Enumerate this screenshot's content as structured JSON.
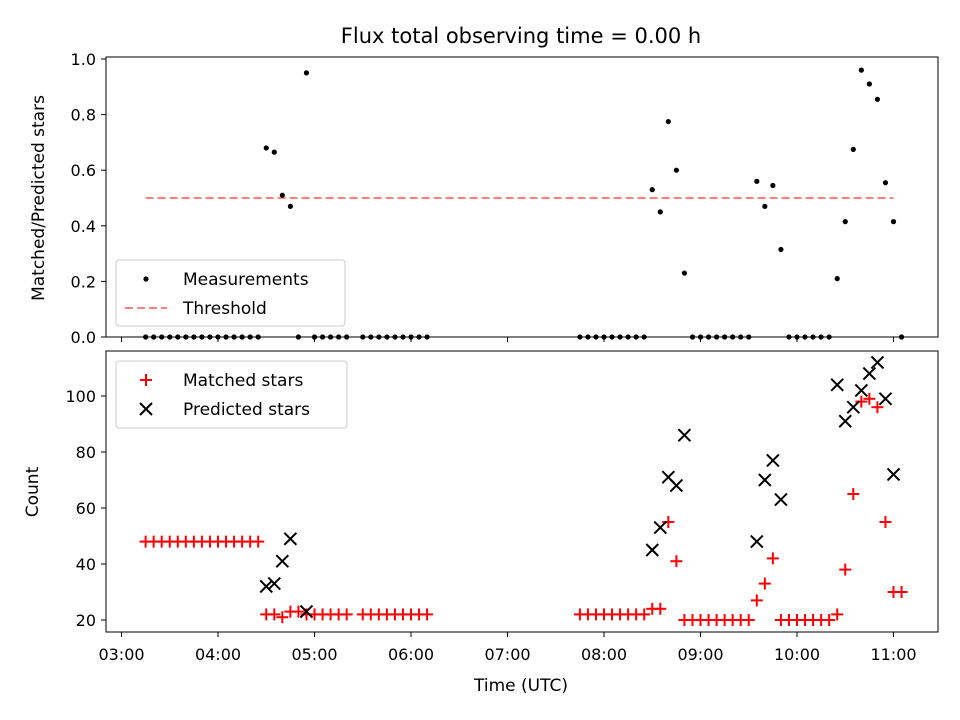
{
  "chart_data": [
    {
      "type": "scatter",
      "title": "Flux total observing time = 0.00 h",
      "xlabel": "",
      "ylabel": "Matched/Predicted stars",
      "xlim": [
        "03:00",
        "11:30"
      ],
      "ylim": [
        0,
        1.0
      ],
      "yticks": [
        "0.0",
        "0.2",
        "0.4",
        "0.6",
        "0.8",
        "1.0"
      ],
      "grid": false,
      "legend_position": "lower-left",
      "series": [
        {
          "name": "Measurements",
          "style": "dot",
          "color": "#000000",
          "points": [
            [
              "03:15",
              0
            ],
            [
              "03:20",
              0
            ],
            [
              "03:25",
              0
            ],
            [
              "03:30",
              0
            ],
            [
              "03:35",
              0
            ],
            [
              "03:40",
              0
            ],
            [
              "03:45",
              0
            ],
            [
              "03:50",
              0
            ],
            [
              "03:55",
              0
            ],
            [
              "04:00",
              0
            ],
            [
              "04:05",
              0
            ],
            [
              "04:10",
              0
            ],
            [
              "04:15",
              0
            ],
            [
              "04:20",
              0
            ],
            [
              "04:25",
              0
            ],
            [
              "04:30",
              0.68
            ],
            [
              "04:35",
              0.665
            ],
            [
              "04:40",
              0.51
            ],
            [
              "04:45",
              0.47
            ],
            [
              "04:50",
              0
            ],
            [
              "04:55",
              0.95
            ],
            [
              "05:00",
              0
            ],
            [
              "05:05",
              0
            ],
            [
              "05:10",
              0
            ],
            [
              "05:15",
              0
            ],
            [
              "05:20",
              0
            ],
            [
              "05:30",
              0
            ],
            [
              "05:35",
              0
            ],
            [
              "05:40",
              0
            ],
            [
              "05:45",
              0
            ],
            [
              "05:50",
              0
            ],
            [
              "05:55",
              0
            ],
            [
              "06:00",
              0
            ],
            [
              "06:05",
              0
            ],
            [
              "06:10",
              0
            ],
            [
              "07:45",
              0
            ],
            [
              "07:50",
              0
            ],
            [
              "07:55",
              0
            ],
            [
              "08:00",
              0
            ],
            [
              "08:05",
              0
            ],
            [
              "08:10",
              0
            ],
            [
              "08:15",
              0
            ],
            [
              "08:20",
              0
            ],
            [
              "08:25",
              0
            ],
            [
              "08:30",
              0.53
            ],
            [
              "08:35",
              0.45
            ],
            [
              "08:40",
              0.775
            ],
            [
              "08:45",
              0.6
            ],
            [
              "08:50",
              0.23
            ],
            [
              "08:55",
              0
            ],
            [
              "09:00",
              0
            ],
            [
              "09:05",
              0
            ],
            [
              "09:10",
              0
            ],
            [
              "09:15",
              0
            ],
            [
              "09:20",
              0
            ],
            [
              "09:25",
              0
            ],
            [
              "09:30",
              0
            ],
            [
              "09:35",
              0.56
            ],
            [
              "09:40",
              0.47
            ],
            [
              "09:45",
              0.545
            ],
            [
              "09:50",
              0.315
            ],
            [
              "09:55",
              0
            ],
            [
              "10:00",
              0
            ],
            [
              "10:05",
              0
            ],
            [
              "10:10",
              0
            ],
            [
              "10:15",
              0
            ],
            [
              "10:20",
              0
            ],
            [
              "10:25",
              0.21
            ],
            [
              "10:30",
              0.415
            ],
            [
              "10:35",
              0.675
            ],
            [
              "10:40",
              0.96
            ],
            [
              "10:45",
              0.91
            ],
            [
              "10:50",
              0.855
            ],
            [
              "10:55",
              0.555
            ],
            [
              "11:00",
              0.415
            ],
            [
              "11:05",
              0
            ]
          ]
        },
        {
          "name": "Threshold",
          "style": "dashed-line",
          "color": "#ff7f7f",
          "points": [
            [
              "03:15",
              0.5
            ],
            [
              "11:00",
              0.5
            ]
          ]
        }
      ]
    },
    {
      "type": "scatter",
      "title": "",
      "xlabel": "Time (UTC)",
      "ylabel": "Count",
      "xlim": [
        "03:00",
        "11:30"
      ],
      "ylim": [
        15,
        115
      ],
      "yticks": [
        "20",
        "40",
        "60",
        "80",
        "100"
      ],
      "xticks": [
        "03:00",
        "04:00",
        "05:00",
        "06:00",
        "07:00",
        "08:00",
        "09:00",
        "10:00",
        "11:00"
      ],
      "grid": false,
      "legend_position": "top-left",
      "series": [
        {
          "name": "Matched stars",
          "style": "plus",
          "color": "#ff0000",
          "points": [
            [
              "03:15",
              48
            ],
            [
              "03:20",
              48
            ],
            [
              "03:25",
              48
            ],
            [
              "03:30",
              48
            ],
            [
              "03:35",
              48
            ],
            [
              "03:40",
              48
            ],
            [
              "03:45",
              48
            ],
            [
              "03:50",
              48
            ],
            [
              "03:55",
              48
            ],
            [
              "04:00",
              48
            ],
            [
              "04:05",
              48
            ],
            [
              "04:10",
              48
            ],
            [
              "04:15",
              48
            ],
            [
              "04:20",
              48
            ],
            [
              "04:25",
              48
            ],
            [
              "04:30",
              22
            ],
            [
              "04:35",
              22
            ],
            [
              "04:40",
              21
            ],
            [
              "04:45",
              23
            ],
            [
              "04:50",
              23
            ],
            [
              "04:55",
              22
            ],
            [
              "05:00",
              22
            ],
            [
              "05:05",
              22
            ],
            [
              "05:10",
              22
            ],
            [
              "05:15",
              22
            ],
            [
              "05:20",
              22
            ],
            [
              "05:30",
              22
            ],
            [
              "05:35",
              22
            ],
            [
              "05:40",
              22
            ],
            [
              "05:45",
              22
            ],
            [
              "05:50",
              22
            ],
            [
              "05:55",
              22
            ],
            [
              "06:00",
              22
            ],
            [
              "06:05",
              22
            ],
            [
              "06:10",
              22
            ],
            [
              "07:45",
              22
            ],
            [
              "07:50",
              22
            ],
            [
              "07:55",
              22
            ],
            [
              "08:00",
              22
            ],
            [
              "08:05",
              22
            ],
            [
              "08:10",
              22
            ],
            [
              "08:15",
              22
            ],
            [
              "08:20",
              22
            ],
            [
              "08:25",
              22
            ],
            [
              "08:30",
              24
            ],
            [
              "08:35",
              24
            ],
            [
              "08:40",
              55
            ],
            [
              "08:45",
              41
            ],
            [
              "08:50",
              20
            ],
            [
              "08:55",
              20
            ],
            [
              "09:00",
              20
            ],
            [
              "09:05",
              20
            ],
            [
              "09:10",
              20
            ],
            [
              "09:15",
              20
            ],
            [
              "09:20",
              20
            ],
            [
              "09:25",
              20
            ],
            [
              "09:30",
              20
            ],
            [
              "09:35",
              27
            ],
            [
              "09:40",
              33
            ],
            [
              "09:45",
              42
            ],
            [
              "09:50",
              20
            ],
            [
              "09:55",
              20
            ],
            [
              "10:00",
              20
            ],
            [
              "10:05",
              20
            ],
            [
              "10:10",
              20
            ],
            [
              "10:15",
              20
            ],
            [
              "10:20",
              20
            ],
            [
              "10:25",
              22
            ],
            [
              "10:30",
              38
            ],
            [
              "10:35",
              65
            ],
            [
              "10:40",
              98
            ],
            [
              "10:45",
              99
            ],
            [
              "10:50",
              96
            ],
            [
              "10:55",
              55
            ],
            [
              "11:00",
              30
            ],
            [
              "11:05",
              30
            ]
          ]
        },
        {
          "name": "Predicted stars",
          "style": "x",
          "color": "#000000",
          "points": [
            [
              "04:30",
              32
            ],
            [
              "04:35",
              33
            ],
            [
              "04:40",
              41
            ],
            [
              "04:45",
              49
            ],
            [
              "04:55",
              23
            ],
            [
              "08:30",
              45
            ],
            [
              "08:35",
              53
            ],
            [
              "08:40",
              71
            ],
            [
              "08:45",
              68
            ],
            [
              "08:50",
              86
            ],
            [
              "09:35",
              48
            ],
            [
              "09:40",
              70
            ],
            [
              "09:45",
              77
            ],
            [
              "09:50",
              63
            ],
            [
              "10:25",
              104
            ],
            [
              "10:30",
              91
            ],
            [
              "10:35",
              96
            ],
            [
              "10:40",
              102
            ],
            [
              "10:45",
              108
            ],
            [
              "10:50",
              112
            ],
            [
              "10:55",
              99
            ],
            [
              "11:00",
              72
            ]
          ]
        }
      ]
    }
  ]
}
